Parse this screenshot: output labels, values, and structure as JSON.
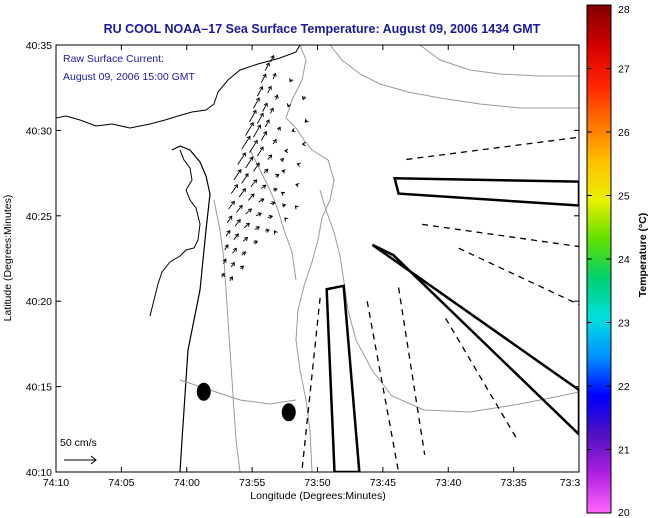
{
  "chart_data": {
    "type": "map",
    "title": "RU COOL  NOAA–17  Sea Surface Temperature:  August 09, 2006 1434 GMT",
    "annotation": [
      "Raw Surface Current:",
      "August 09, 2006 15:00 GMT"
    ],
    "xlabel": "Longitude (Degrees:Minutes)",
    "ylabel": "Latitude (Degrees:Minutes)",
    "x_ticks": [
      "74:10",
      "74:05",
      "74:00",
      "73:55",
      "73:50",
      "73:45",
      "73:40",
      "73:35",
      "73:3"
    ],
    "y_ticks": [
      "40:35",
      "40:30",
      "40:25",
      "40:20",
      "40:15",
      "40:10"
    ],
    "xlim_minutes_west": [
      250,
      210
    ],
    "ylim_minutes_north": [
      2410,
      2435
    ],
    "colorbar": {
      "label": "Temperature (°C)",
      "ticks": [
        "28",
        "27",
        "26",
        "25",
        "24",
        "23",
        "22",
        "21",
        "20"
      ],
      "range": [
        20,
        28
      ],
      "colors": [
        "#ff66ff",
        "#b020e0",
        "#5010c0",
        "#0000ff",
        "#0090ff",
        "#00e0e0",
        "#00d070",
        "#60e000",
        "#e8f000",
        "#ffc000",
        "#ff7000",
        "#ff2000",
        "#d00000",
        "#800000"
      ]
    },
    "scale_arrow_label": "50 cm/s",
    "current_vectors": [
      {
        "lon": 233.6,
        "lat": 2434.0,
        "u": 5,
        "v": 10
      },
      {
        "lon": 234.0,
        "lat": 2433.5,
        "u": 6,
        "v": 12
      },
      {
        "lon": 233.4,
        "lat": 2433.0,
        "u": 4,
        "v": 9
      },
      {
        "lon": 234.3,
        "lat": 2432.8,
        "u": 7,
        "v": 13
      },
      {
        "lon": 233.8,
        "lat": 2432.2,
        "u": 5,
        "v": 10
      },
      {
        "lon": 234.6,
        "lat": 2432.0,
        "u": 8,
        "v": 15
      },
      {
        "lon": 233.2,
        "lat": 2431.8,
        "u": 3,
        "v": 7
      },
      {
        "lon": 234.9,
        "lat": 2431.3,
        "u": 9,
        "v": 16
      },
      {
        "lon": 234.2,
        "lat": 2431.1,
        "u": 7,
        "v": 13
      },
      {
        "lon": 233.6,
        "lat": 2431.0,
        "u": 4,
        "v": 8
      },
      {
        "lon": 235.2,
        "lat": 2430.5,
        "u": 10,
        "v": 18
      },
      {
        "lon": 234.6,
        "lat": 2430.4,
        "u": 9,
        "v": 16
      },
      {
        "lon": 234.0,
        "lat": 2430.2,
        "u": 6,
        "v": 11
      },
      {
        "lon": 233.0,
        "lat": 2430.0,
        "u": 3,
        "v": 5
      },
      {
        "lon": 235.5,
        "lat": 2429.7,
        "u": 12,
        "v": 20
      },
      {
        "lon": 234.9,
        "lat": 2429.6,
        "u": 11,
        "v": 19
      },
      {
        "lon": 234.3,
        "lat": 2429.4,
        "u": 8,
        "v": 14
      },
      {
        "lon": 233.4,
        "lat": 2429.2,
        "u": 5,
        "v": 7
      },
      {
        "lon": 235.8,
        "lat": 2428.9,
        "u": 13,
        "v": 20
      },
      {
        "lon": 235.2,
        "lat": 2428.7,
        "u": 12,
        "v": 19
      },
      {
        "lon": 234.6,
        "lat": 2428.5,
        "u": 9,
        "v": 14
      },
      {
        "lon": 233.8,
        "lat": 2428.3,
        "u": 6,
        "v": 7
      },
      {
        "lon": 232.8,
        "lat": 2428.2,
        "u": 4,
        "v": 4
      },
      {
        "lon": 236.1,
        "lat": 2428.0,
        "u": 12,
        "v": 18
      },
      {
        "lon": 235.5,
        "lat": 2427.8,
        "u": 11,
        "v": 17
      },
      {
        "lon": 234.9,
        "lat": 2427.6,
        "u": 9,
        "v": 13
      },
      {
        "lon": 234.1,
        "lat": 2427.5,
        "u": 6,
        "v": 6
      },
      {
        "lon": 233.2,
        "lat": 2427.3,
        "u": 5,
        "v": 3
      },
      {
        "lon": 236.4,
        "lat": 2427.1,
        "u": 11,
        "v": 16
      },
      {
        "lon": 235.8,
        "lat": 2426.9,
        "u": 10,
        "v": 15
      },
      {
        "lon": 235.1,
        "lat": 2426.7,
        "u": 9,
        "v": 11
      },
      {
        "lon": 234.3,
        "lat": 2426.6,
        "u": 7,
        "v": 5
      },
      {
        "lon": 233.4,
        "lat": 2426.5,
        "u": 6,
        "v": 2
      },
      {
        "lon": 236.6,
        "lat": 2426.3,
        "u": 10,
        "v": 14
      },
      {
        "lon": 236.0,
        "lat": 2426.1,
        "u": 10,
        "v": 13
      },
      {
        "lon": 235.3,
        "lat": 2425.9,
        "u": 9,
        "v": 10
      },
      {
        "lon": 234.5,
        "lat": 2425.8,
        "u": 8,
        "v": 5
      },
      {
        "lon": 233.6,
        "lat": 2425.7,
        "u": 7,
        "v": 2
      },
      {
        "lon": 232.7,
        "lat": 2425.6,
        "u": 5,
        "v": 1
      },
      {
        "lon": 236.8,
        "lat": 2425.4,
        "u": 9,
        "v": 12
      },
      {
        "lon": 236.2,
        "lat": 2425.2,
        "u": 9,
        "v": 11
      },
      {
        "lon": 235.5,
        "lat": 2425.1,
        "u": 9,
        "v": 8
      },
      {
        "lon": 234.7,
        "lat": 2425.0,
        "u": 8,
        "v": 4
      },
      {
        "lon": 233.8,
        "lat": 2424.9,
        "u": 7,
        "v": 2
      },
      {
        "lon": 236.9,
        "lat": 2424.6,
        "u": 7,
        "v": 10
      },
      {
        "lon": 236.3,
        "lat": 2424.4,
        "u": 8,
        "v": 10
      },
      {
        "lon": 235.6,
        "lat": 2424.3,
        "u": 8,
        "v": 7
      },
      {
        "lon": 234.8,
        "lat": 2424.2,
        "u": 7,
        "v": 4
      },
      {
        "lon": 234.0,
        "lat": 2424.1,
        "u": 6,
        "v": 2
      },
      {
        "lon": 237.0,
        "lat": 2423.8,
        "u": 6,
        "v": 9
      },
      {
        "lon": 236.4,
        "lat": 2423.6,
        "u": 7,
        "v": 9
      },
      {
        "lon": 235.7,
        "lat": 2423.5,
        "u": 7,
        "v": 6
      },
      {
        "lon": 234.9,
        "lat": 2423.4,
        "u": 6,
        "v": 3
      },
      {
        "lon": 237.1,
        "lat": 2423.0,
        "u": 5,
        "v": 8
      },
      {
        "lon": 236.5,
        "lat": 2422.8,
        "u": 6,
        "v": 8
      },
      {
        "lon": 235.8,
        "lat": 2422.7,
        "u": 6,
        "v": 5
      },
      {
        "lon": 237.2,
        "lat": 2422.2,
        "u": 4,
        "v": 7
      },
      {
        "lon": 236.6,
        "lat": 2422.0,
        "u": 5,
        "v": 7
      },
      {
        "lon": 235.9,
        "lat": 2421.9,
        "u": 5,
        "v": 4
      },
      {
        "lon": 237.3,
        "lat": 2421.4,
        "u": 3,
        "v": 6
      },
      {
        "lon": 236.7,
        "lat": 2421.2,
        "u": 4,
        "v": 6
      },
      {
        "lon": 232.0,
        "lat": 2433.0,
        "u": -2,
        "v": -4
      },
      {
        "lon": 231.0,
        "lat": 2432.0,
        "u": -2,
        "v": -5
      },
      {
        "lon": 232.2,
        "lat": 2431.5,
        "u": -1,
        "v": -3
      },
      {
        "lon": 230.8,
        "lat": 2430.6,
        "u": -3,
        "v": -3
      },
      {
        "lon": 231.8,
        "lat": 2430.0,
        "u": -3,
        "v": -1
      },
      {
        "lon": 231.0,
        "lat": 2429.2,
        "u": -3,
        "v": 0
      },
      {
        "lon": 232.3,
        "lat": 2428.8,
        "u": -4,
        "v": 0
      },
      {
        "lon": 231.4,
        "lat": 2428.0,
        "u": -3,
        "v": 1
      },
      {
        "lon": 232.5,
        "lat": 2427.6,
        "u": -4,
        "v": 1
      },
      {
        "lon": 231.5,
        "lat": 2426.8,
        "u": -3,
        "v": 1
      },
      {
        "lon": 232.6,
        "lat": 2426.3,
        "u": -3,
        "v": 2
      },
      {
        "lon": 231.6,
        "lat": 2425.5,
        "u": -2,
        "v": 2
      },
      {
        "lon": 232.4,
        "lat": 2424.8,
        "u": -2,
        "v": 2
      },
      {
        "lon": 233.2,
        "lat": 2424.0,
        "u": -2,
        "v": 3
      }
    ],
    "dots": [
      {
        "lon": 238.7,
        "lat": 2414.7
      },
      {
        "lon": 232.2,
        "lat": 2413.5
      }
    ],
    "rectangles": [
      {
        "corners": [
          [
            229.3,
            2420.7
          ],
          [
            228.0,
            2420.9
          ],
          [
            226.8,
            2410.0
          ],
          [
            228.7,
            2410.0
          ]
        ]
      },
      {
        "corners": [
          [
            224.1,
            2427.2
          ],
          [
            223.8,
            2426.3
          ],
          [
            210.0,
            2425.6
          ],
          [
            210.0,
            2427.0
          ]
        ]
      },
      {
        "corners": [
          [
            225.8,
            2423.3
          ],
          [
            224.2,
            2422.7
          ],
          [
            210.0,
            2412.2
          ],
          [
            210.0,
            2414.8
          ]
        ]
      }
    ],
    "dashed_lines": [
      {
        "from": [
          229.8,
          2420.2
        ],
        "to": [
          231.2,
          2410.0
        ]
      },
      {
        "from": [
          226.2,
          2420.0
        ],
        "to": [
          223.8,
          2410.0
        ]
      },
      {
        "from": [
          223.8,
          2420.8
        ],
        "to": [
          221.8,
          2411.0
        ]
      },
      {
        "from": [
          220.2,
          2419.0
        ],
        "to": [
          214.8,
          2412.0
        ]
      },
      {
        "from": [
          219.2,
          2423.1
        ],
        "to": [
          210.0,
          2419.8
        ]
      },
      {
        "from": [
          222.0,
          2424.5
        ],
        "to": [
          210.0,
          2423.2
        ]
      },
      {
        "from": [
          223.2,
          2428.3
        ],
        "to": [
          210.0,
          2429.6
        ]
      }
    ]
  }
}
